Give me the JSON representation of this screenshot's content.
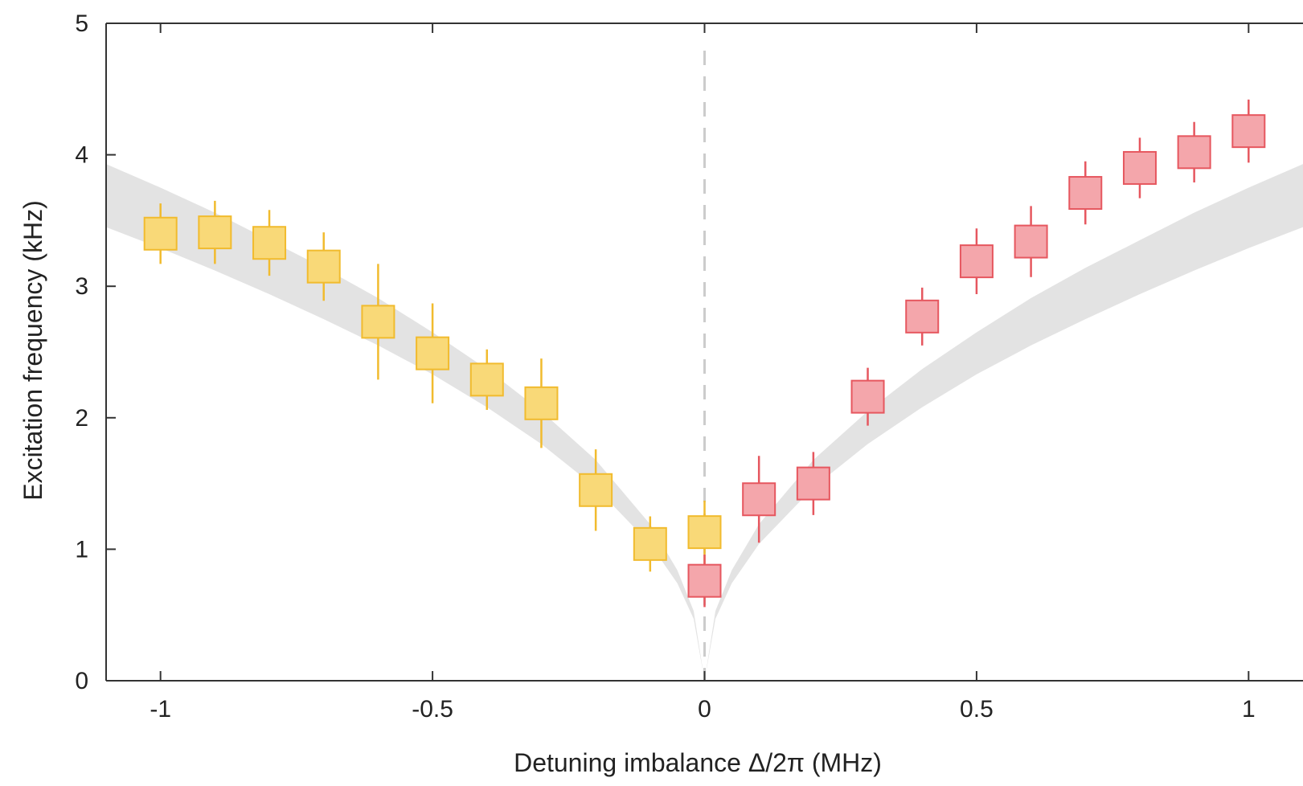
{
  "chart_data": {
    "type": "scatter",
    "xlabel": "Detuning imbalance Δ/2π  (MHz)",
    "ylabel": "Excitation frequency (kHz)",
    "xlim": [
      -1.1,
      1.1
    ],
    "ylim": [
      0,
      5
    ],
    "x_ticks": [
      -1,
      -0.5,
      0,
      0.5,
      1
    ],
    "x_tick_labels": [
      "-1",
      "-0.5",
      "0",
      "0.5",
      "1"
    ],
    "y_ticks": [
      0,
      1,
      2,
      3,
      4,
      5
    ],
    "y_tick_labels": [
      "0",
      "1",
      "2",
      "3",
      "4",
      "5"
    ],
    "grid": false,
    "legend": "none",
    "reference_line": {
      "x": 0,
      "style": "dashed",
      "color": "#cccccc"
    },
    "theory_band": {
      "color": "#e3e3e3",
      "x": [
        -1.1,
        -1.0,
        -0.9,
        -0.8,
        -0.7,
        -0.6,
        -0.5,
        -0.4,
        -0.3,
        -0.2,
        -0.1,
        -0.05,
        -0.02,
        0.0,
        0.02,
        0.05,
        0.1,
        0.2,
        0.3,
        0.4,
        0.5,
        0.6,
        0.7,
        0.8,
        0.9,
        1.0,
        1.1
      ],
      "lower": [
        3.45,
        3.29,
        3.12,
        2.94,
        2.75,
        2.55,
        2.33,
        2.08,
        1.8,
        1.47,
        1.04,
        0.74,
        0.47,
        0.0,
        0.47,
        0.74,
        1.04,
        1.47,
        1.8,
        2.08,
        2.33,
        2.55,
        2.75,
        2.94,
        3.12,
        3.29,
        3.45
      ],
      "upper": [
        3.93,
        3.75,
        3.56,
        3.35,
        3.14,
        2.91,
        2.65,
        2.37,
        2.05,
        1.68,
        1.19,
        0.84,
        0.53,
        0.0,
        0.53,
        0.84,
        1.19,
        1.68,
        2.05,
        2.37,
        2.65,
        2.91,
        3.14,
        3.35,
        3.56,
        3.75,
        3.93
      ]
    },
    "series": [
      {
        "fill": "#f9d978",
        "stroke": "#f1bb2e",
        "x": [
          -1.0,
          -0.9,
          -0.8,
          -0.7,
          -0.6,
          -0.5,
          -0.4,
          -0.3,
          -0.2,
          -0.1,
          0.0
        ],
        "y": [
          3.4,
          3.41,
          3.33,
          3.15,
          2.73,
          2.49,
          2.29,
          2.11,
          1.45,
          1.04,
          1.13
        ],
        "yerr": [
          0.23,
          0.24,
          0.25,
          0.26,
          0.44,
          0.38,
          0.23,
          0.34,
          0.31,
          0.21,
          0.24
        ]
      },
      {
        "fill": "#f4a6ab",
        "stroke": "#e6575f",
        "x": [
          0.0,
          0.1,
          0.2,
          0.3,
          0.4,
          0.5,
          0.6,
          0.7,
          0.8,
          0.9,
          1.0
        ],
        "y": [
          0.76,
          1.38,
          1.5,
          2.16,
          2.77,
          3.19,
          3.34,
          3.71,
          3.9,
          4.02,
          4.18
        ],
        "yerr": [
          0.2,
          0.33,
          0.24,
          0.22,
          0.22,
          0.25,
          0.27,
          0.24,
          0.23,
          0.23,
          0.24
        ]
      }
    ]
  }
}
